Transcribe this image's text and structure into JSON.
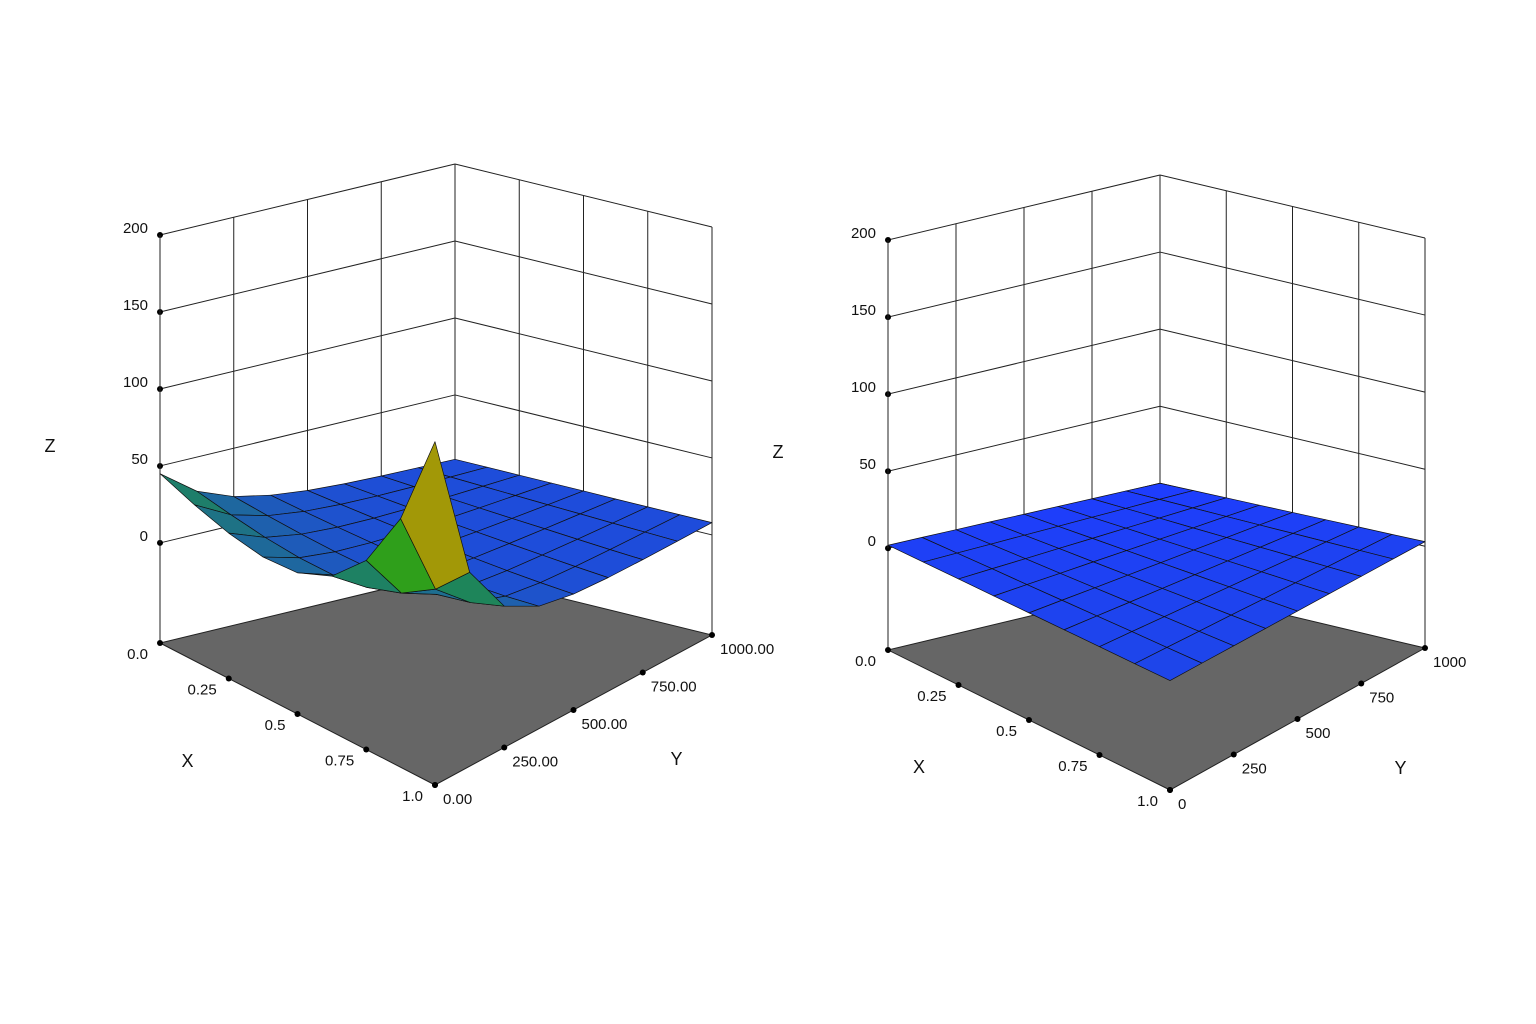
{
  "chart_data": [
    {
      "type": "surface",
      "x_label": "X",
      "y_label": "Y",
      "z_label": "Z",
      "x": [
        0,
        0.125,
        0.25,
        0.375,
        0.5,
        0.625,
        0.75,
        0.875,
        1
      ],
      "y": [
        0,
        125,
        250,
        375,
        500,
        625,
        750,
        875,
        1000
      ],
      "z": [
        [
          45,
          27.8,
          18.6,
          13.7,
          11,
          9.6,
          8.9,
          8.5,
          8.2
        ],
        [
          36.3,
          23.2,
          16.1,
          12.3,
          10.3,
          9.2,
          8.7,
          8.4,
          8.2
        ],
        [
          29.4,
          19.3,
          14,
          11.2,
          9.7,
          8.9,
          8.5,
          8.3,
          8.1
        ],
        [
          25.4,
          16.8,
          12.5,
          10.3,
          9.2,
          8.6,
          8.3,
          8.2,
          8.1
        ],
        [
          26.7,
          16.3,
          11.8,
          9.8,
          9,
          8.5,
          8.2,
          8.1,
          8.1
        ],
        [
          36.1,
          18.9,
          12.4,
          9.8,
          8.8,
          8.4,
          8.2,
          8.1,
          8
        ],
        [
          57.8,
          26,
          14.6,
          10.4,
          8.9,
          8.4,
          8.1,
          8,
          8
        ],
        [
          96.5,
          39.3,
          19.2,
          12,
          9.4,
          8.5,
          8.1,
          8.1,
          8
        ],
        [
          158,
          61,
          26.8,
          14.6,
          10.3,
          8.8,
          8.3,
          8.1,
          8
        ]
      ],
      "xlim": [
        0,
        1
      ],
      "ylim": [
        0,
        1000
      ],
      "zlim": [
        -65,
        200
      ],
      "xticks": [
        {
          "value": 0,
          "label": "0.0"
        },
        0.25,
        0.5,
        0.75,
        {
          "value": 1,
          "label": "1.0"
        }
      ],
      "yticks": [
        {
          "value": 0,
          "label": "0.00"
        },
        {
          "value": 250,
          "label": "250.00"
        },
        {
          "value": 500,
          "label": "500.00"
        },
        {
          "value": 750,
          "label": "750.00"
        },
        {
          "value": 1000,
          "label": "1000.00"
        }
      ],
      "zticks": [
        0,
        50,
        100,
        150,
        200
      ],
      "colormap": [
        "#1e3cff",
        "#1ea01e",
        "#c89600",
        "#c81e14",
        "#a01010"
      ],
      "floor_color": "#666666"
    },
    {
      "type": "surface",
      "x_label": "X",
      "y_label": "Y",
      "z_label": "Z",
      "x": [
        0,
        0.125,
        0.25,
        0.375,
        0.5,
        0.625,
        0.75,
        0.875,
        1
      ],
      "y": [
        0,
        125,
        250,
        375,
        500,
        625,
        750,
        875,
        1000
      ],
      "z": [
        [
          2,
          1.8,
          1.5,
          1.3,
          1,
          0.8,
          0.5,
          0.3,
          0
        ],
        [
          2.4,
          2.2,
          1.9,
          1.7,
          1.4,
          1.2,
          0.9,
          0.7,
          0.4
        ],
        [
          2.8,
          2.6,
          2.3,
          2.1,
          1.8,
          1.6,
          1.3,
          1.1,
          0.8
        ],
        [
          3.1,
          2.9,
          2.6,
          2.4,
          2.1,
          1.9,
          1.6,
          1.4,
          1.1
        ],
        [
          3.5,
          3.3,
          3,
          2.8,
          2.5,
          2.3,
          2,
          1.8,
          1.5
        ],
        [
          3.9,
          3.7,
          3.4,
          3.2,
          2.9,
          2.7,
          2.4,
          2.2,
          1.9
        ],
        [
          4.3,
          4.1,
          3.8,
          3.6,
          3.3,
          3.1,
          2.8,
          2.6,
          2.3
        ],
        [
          4.6,
          4.4,
          4.1,
          3.9,
          3.6,
          3.4,
          3.1,
          2.9,
          2.6
        ],
        [
          5,
          4.8,
          4.5,
          4.3,
          4,
          3.8,
          3.5,
          3.3,
          3
        ]
      ],
      "xlim": [
        0,
        1
      ],
      "ylim": [
        0,
        1000
      ],
      "zlim": [
        -66,
        200
      ],
      "xticks": [
        {
          "value": 0,
          "label": "0.0"
        },
        0.25,
        0.5,
        0.75,
        {
          "value": 1,
          "label": "1.0"
        }
      ],
      "yticks": [
        0,
        250,
        500,
        750,
        1000
      ],
      "zticks": [
        0,
        50,
        100,
        150,
        200
      ],
      "colormap": [
        "#1e3cff",
        "#1ea01e",
        "#c89600",
        "#c81e14",
        "#a01010"
      ],
      "floor_color": "#666666"
    }
  ]
}
